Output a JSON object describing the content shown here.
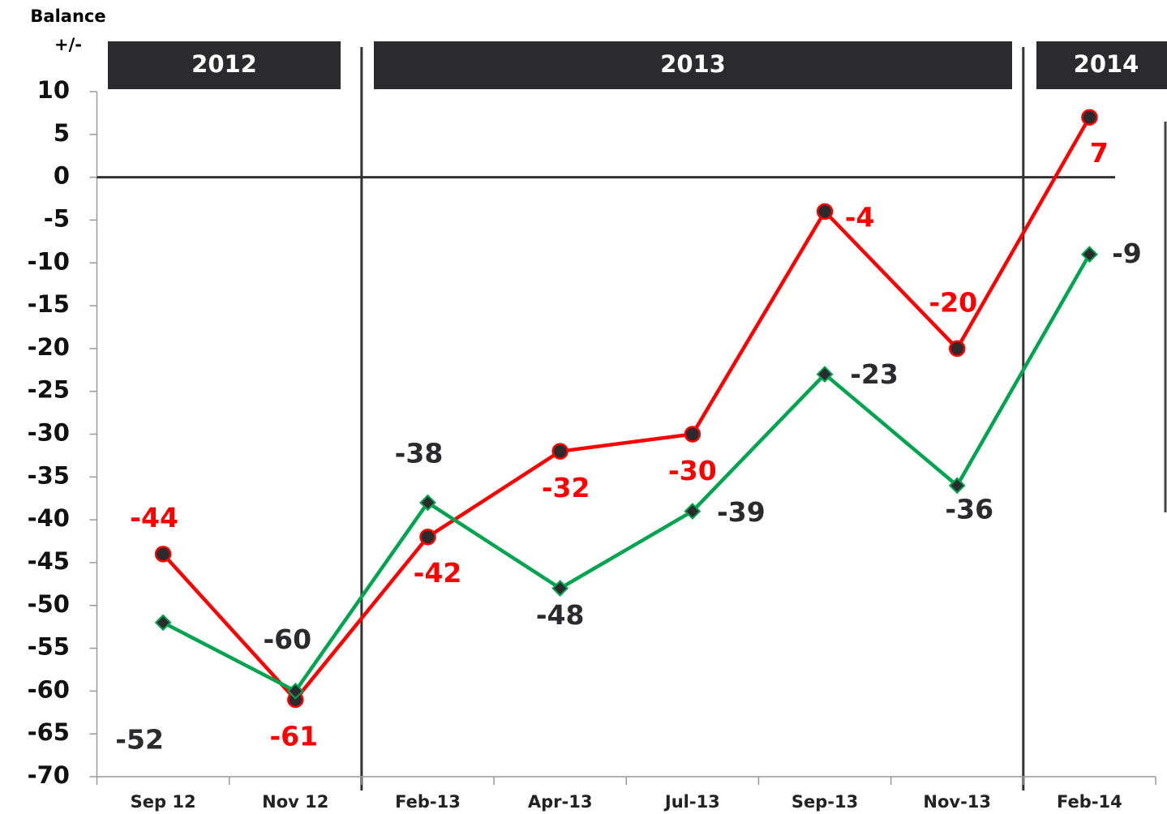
{
  "chart_data": {
    "type": "line",
    "ylabel": [
      "Balance",
      "+/-"
    ],
    "periods": [
      "2012",
      "2013",
      "2014"
    ],
    "categories": [
      "Sep 12",
      "Nov 12",
      "Feb-13",
      "Apr-13",
      "Jul-13",
      "Sep-13",
      "Nov-13",
      "Feb-14"
    ],
    "series": [
      {
        "color": "#ff0000",
        "marker": "circle",
        "values": [
          -44,
          -61,
          -42,
          -32,
          -30,
          -4,
          -20,
          7
        ]
      },
      {
        "color": "#00a64f",
        "marker": "diamond",
        "values": [
          -52,
          -60,
          -38,
          -48,
          -39,
          -23,
          -36,
          -9
        ]
      }
    ],
    "ylim": [
      -70,
      10
    ],
    "yticks": [
      10,
      5,
      0,
      -5,
      -10,
      -15,
      -20,
      -25,
      -30,
      -35,
      -40,
      -45,
      -50,
      -55,
      -60,
      -65,
      -70
    ]
  }
}
